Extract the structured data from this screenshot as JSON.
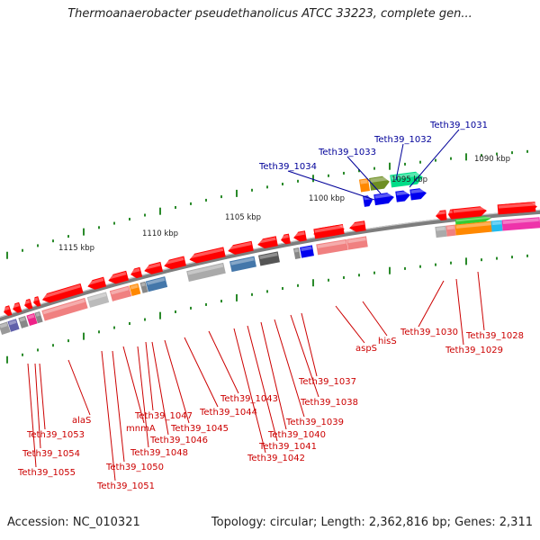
{
  "title": "Thermoanaerobacter pseudethanolicus ATCC 33223, complete gen...",
  "footer": {
    "accession": "Accession: NC_010321",
    "topology": "Topology: circular; Length: 2,362,816 bp; Genes: 2,311"
  },
  "colors": {
    "backbone": "#8a8a8a",
    "ticks": "#2a8a2a",
    "label_red": "#cc0000",
    "label_blue": "#000099",
    "gene_red": "#ff0000",
    "gene_blue": "#0000ee"
  },
  "scale_labels": [
    "1115 kbp",
    "1110 kbp",
    "1105 kbp",
    "1100 kbp",
    "1095 kbp",
    "1090 kbp"
  ],
  "red_labels": [
    "Teth39_1055",
    "Teth39_1054",
    "Teth39_1053",
    "alaS",
    "Teth39_1051",
    "Teth39_1050",
    "mnmA",
    "Teth39_1048",
    "Teth39_1047",
    "Teth39_1046",
    "Teth39_1045",
    "Teth39_1044",
    "Teth39_1043",
    "Teth39_1042",
    "Teth39_1041",
    "Teth39_1040",
    "Teth39_1039",
    "Teth39_1038",
    "Teth39_1037",
    "aspS",
    "hisS",
    "Teth39_1030",
    "Teth39_1029",
    "Teth39_1028"
  ],
  "blue_labels": [
    "Teth39_1034",
    "Teth39_1033",
    "Teth39_1032",
    "Teth39_1031"
  ]
}
